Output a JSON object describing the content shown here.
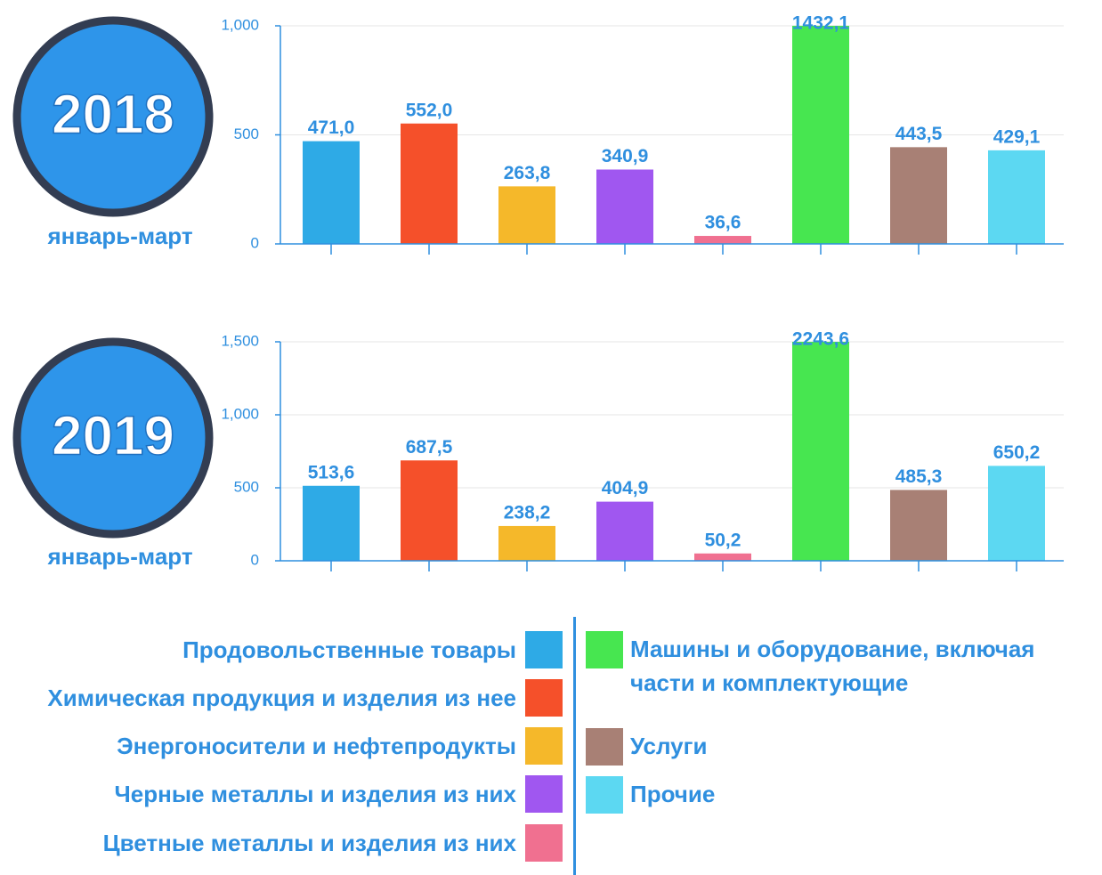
{
  "chart_data": [
    {
      "type": "bar",
      "title": "2018",
      "subtitle": "январь-март",
      "values": [
        471.0,
        552.0,
        263.8,
        340.9,
        36.6,
        1432.1,
        443.5,
        429.1
      ],
      "value_labels": [
        "471,0",
        "552,0",
        "263,8",
        "340,9",
        "36,6",
        "1432,1",
        "443,5",
        "429,1"
      ],
      "ylim": [
        0,
        1000
      ],
      "yticks": [
        0,
        500,
        {
          "value": 1000,
          "label": "1,000"
        }
      ],
      "grid": true
    },
    {
      "type": "bar",
      "title": "2019",
      "subtitle": "январь-март",
      "values": [
        513.6,
        687.5,
        238.2,
        404.9,
        50.2,
        2243.6,
        485.3,
        650.2
      ],
      "value_labels": [
        "513,6",
        "687,5",
        "238,2",
        "404,9",
        "50,2",
        "2243,6",
        "485,3",
        "650,2"
      ],
      "ylim": [
        0,
        1500
      ],
      "yticks": [
        0,
        500,
        {
          "value": 1000,
          "label": "1,000"
        },
        {
          "value": 1500,
          "label": "1,500"
        }
      ],
      "grid": true
    }
  ],
  "legend": {
    "items": [
      {
        "name": "Продовольственные товары",
        "color": "#2eaae6"
      },
      {
        "name": "Химическая продукция и изделия из нее",
        "color": "#f5502a"
      },
      {
        "name": "Энергоносители и нефтепродукты",
        "color": "#f5b82a"
      },
      {
        "name": "Черные металлы и изделия из них",
        "color": "#a057f0"
      },
      {
        "name": "Цветные металлы и изделия из них",
        "color": "#f07090"
      },
      {
        "name": "Машины и оборудование, включая части и комплектующие",
        "color": "#47e650"
      },
      {
        "name": "Услуги",
        "color": "#a88075"
      },
      {
        "name": "Прочие",
        "color": "#5cd8f2"
      }
    ]
  }
}
